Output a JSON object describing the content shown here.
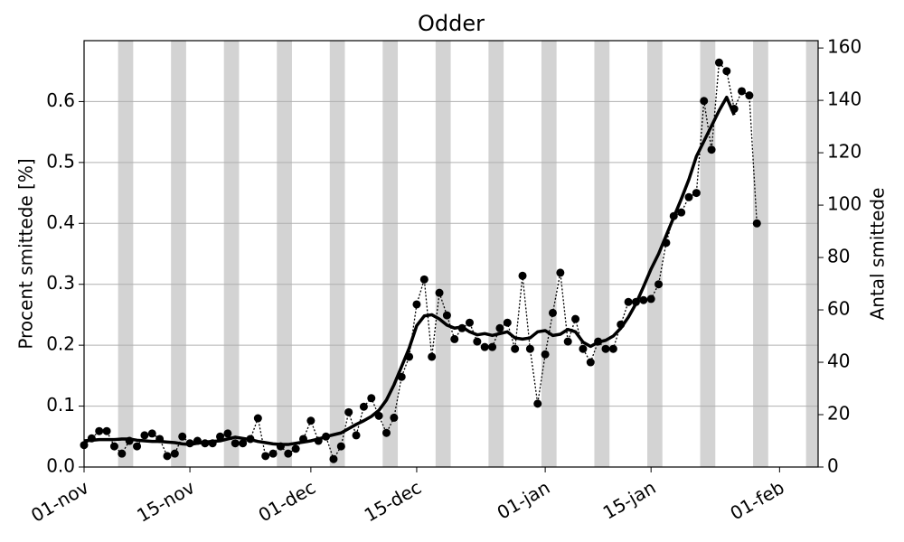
{
  "chart_data": {
    "type": "line",
    "title": "Odder",
    "ylabel": "Procent smittede [%]",
    "y2label": "Antal smittede",
    "xlim": [
      0,
      97.1
    ],
    "ylim": [
      0,
      0.7
    ],
    "y2lim": [
      0,
      162.8
    ],
    "xticks": [
      {
        "value": 0,
        "label": "01-nov"
      },
      {
        "value": 14,
        "label": "15-nov"
      },
      {
        "value": 30,
        "label": "01-dec"
      },
      {
        "value": 44,
        "label": "15-dec"
      },
      {
        "value": 61,
        "label": "01-jan"
      },
      {
        "value": 75,
        "label": "15-jan"
      },
      {
        "value": 92,
        "label": "01-feb"
      }
    ],
    "yticks": [
      {
        "value": 0,
        "label": "0.0"
      },
      0.1,
      0.2,
      0.3,
      0.4,
      0.5,
      0.6
    ],
    "y2ticks": [
      0,
      20,
      40,
      60,
      80,
      100,
      120,
      140,
      160
    ],
    "grid": true,
    "shade_color": "#d3d3d3",
    "shaded_spans": [
      [
        4.5,
        6.5
      ],
      [
        11.5,
        13.5
      ],
      [
        18.5,
        20.5
      ],
      [
        25.5,
        27.5
      ],
      [
        32.5,
        34.5
      ],
      [
        39.5,
        41.5
      ],
      [
        46.5,
        48.5
      ],
      [
        53.5,
        55.5
      ],
      [
        60.5,
        62.5
      ],
      [
        67.5,
        69.5
      ],
      [
        74.5,
        76.5
      ],
      [
        81.5,
        83.5
      ],
      [
        88.5,
        90.5
      ],
      [
        95.5,
        97.1
      ]
    ],
    "x": [
      0,
      1,
      2,
      3,
      4,
      5,
      6,
      7,
      8,
      9,
      10,
      11,
      12,
      13,
      14,
      15,
      16,
      17,
      18,
      19,
      20,
      21,
      22,
      23,
      24,
      25,
      26,
      27,
      28,
      29,
      30,
      31,
      32,
      33,
      34,
      35,
      36,
      37,
      38,
      39,
      40,
      41,
      42,
      43,
      44,
      45,
      46,
      47,
      48,
      49,
      50,
      51,
      52,
      53,
      54,
      55,
      56,
      57,
      58,
      59,
      60,
      61,
      62,
      63,
      64,
      65,
      66,
      67,
      68,
      69,
      70,
      71,
      72,
      73,
      74,
      75,
      76,
      77,
      78,
      79,
      80,
      81,
      82,
      83,
      84,
      85,
      86,
      87,
      88,
      89
    ],
    "series": [
      {
        "color": "#000000",
        "style": "dotted-markers",
        "values": [
          0.036,
          0.047,
          0.059,
          0.059,
          0.034,
          0.022,
          0.043,
          0.034,
          0.052,
          0.055,
          0.046,
          0.018,
          0.022,
          0.05,
          0.039,
          0.043,
          0.039,
          0.039,
          0.05,
          0.055,
          0.039,
          0.039,
          0.046,
          0.08,
          0.018,
          0.022,
          0.034,
          0.022,
          0.03,
          0.046,
          0.076,
          0.043,
          0.05,
          0.013,
          0.034,
          0.09,
          0.052,
          0.099,
          0.113,
          0.084,
          0.056,
          0.081,
          0.148,
          0.181,
          0.267,
          0.308,
          0.181,
          0.286,
          0.249,
          0.21,
          0.228,
          0.237,
          0.206,
          0.197,
          0.197,
          0.228,
          0.237,
          0.194,
          0.314,
          0.194,
          0.104,
          0.185,
          0.253,
          0.319,
          0.206,
          0.243,
          0.194,
          0.172,
          0.206,
          0.194,
          0.194,
          0.234,
          0.271,
          0.271,
          0.274,
          0.276,
          0.3,
          0.368,
          0.412,
          0.418,
          0.443,
          0.45,
          0.601,
          0.521,
          0.664,
          0.65,
          0.588,
          0.617,
          0.61,
          0.4
        ]
      },
      {
        "color": "#000000",
        "style": "solid",
        "values": [
          0.043,
          0.044,
          0.045,
          0.045,
          0.045,
          0.046,
          0.046,
          0.044,
          0.043,
          0.042,
          0.042,
          0.041,
          0.04,
          0.038,
          0.037,
          0.039,
          0.041,
          0.042,
          0.043,
          0.046,
          0.049,
          0.047,
          0.045,
          0.042,
          0.04,
          0.038,
          0.037,
          0.037,
          0.039,
          0.041,
          0.043,
          0.046,
          0.05,
          0.053,
          0.056,
          0.063,
          0.07,
          0.076,
          0.083,
          0.093,
          0.11,
          0.135,
          0.165,
          0.195,
          0.232,
          0.248,
          0.25,
          0.243,
          0.233,
          0.228,
          0.23,
          0.222,
          0.217,
          0.219,
          0.216,
          0.219,
          0.222,
          0.212,
          0.21,
          0.212,
          0.222,
          0.224,
          0.216,
          0.218,
          0.226,
          0.222,
          0.205,
          0.198,
          0.205,
          0.208,
          0.215,
          0.228,
          0.246,
          0.268,
          0.296,
          0.325,
          0.35,
          0.38,
          0.41,
          0.44,
          0.472,
          0.51,
          0.535,
          0.56,
          0.585,
          0.607,
          0.578,
          null,
          null,
          null
        ]
      }
    ]
  }
}
